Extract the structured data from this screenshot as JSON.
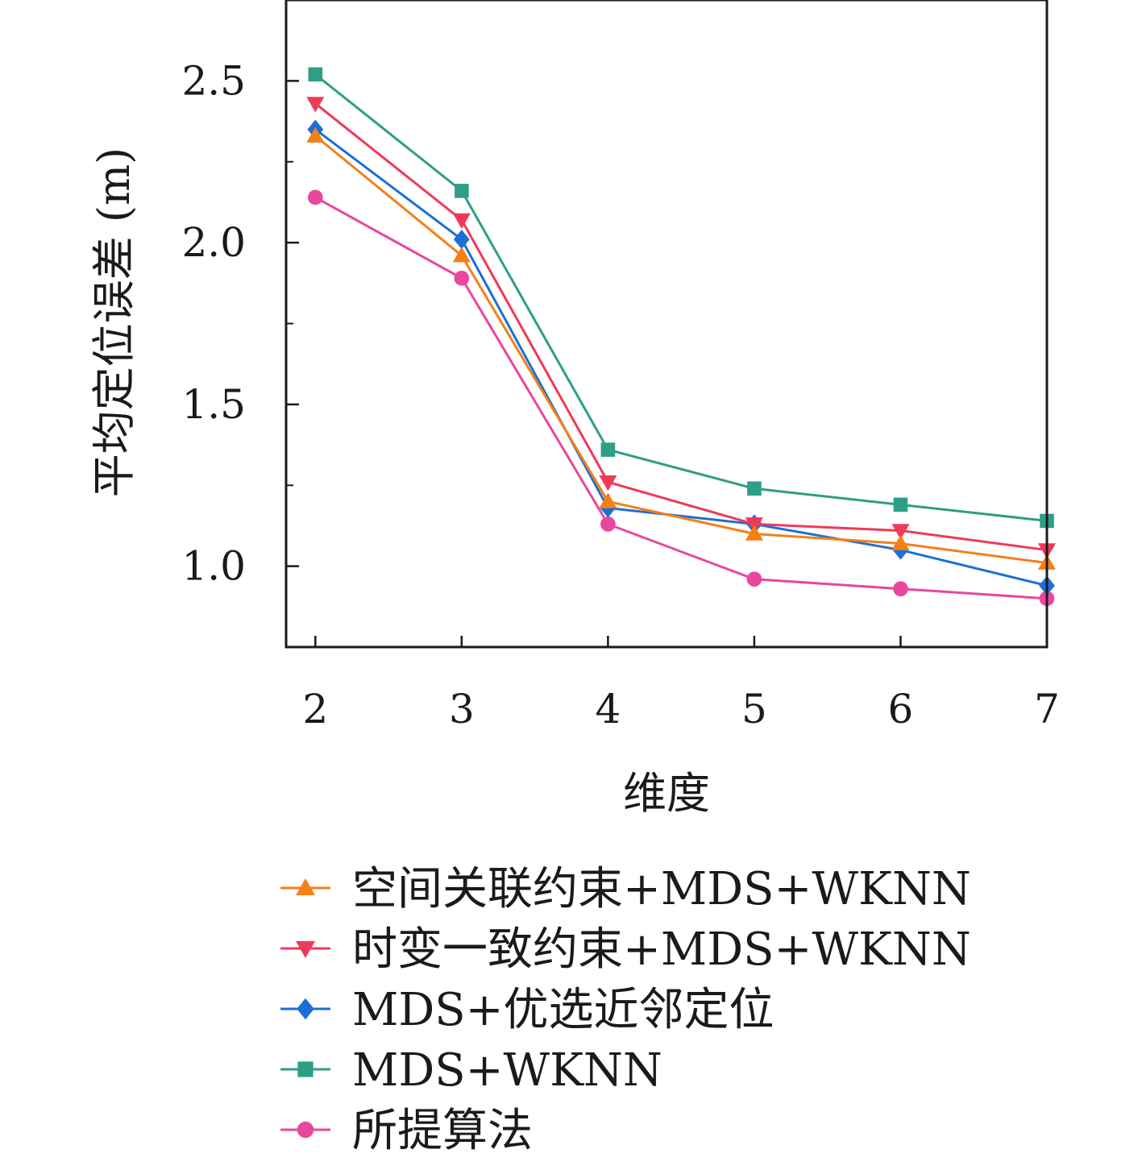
{
  "chart_data": {
    "type": "line",
    "xlabel": "维度",
    "ylabel": "平均定位误差 (m)",
    "x": [
      2,
      3,
      4,
      5,
      6,
      7
    ],
    "xlim": [
      1.8,
      7.0
    ],
    "ylim": [
      0.75,
      2.75
    ],
    "y_ticks_major": [
      1.0,
      1.5,
      2.0,
      2.5
    ],
    "y_ticks_minor": [
      1.25,
      1.75,
      2.25
    ],
    "x_tick_labels": [
      "2",
      "3",
      "4",
      "5",
      "6",
      "7"
    ],
    "y_tick_labels": [
      "1.0",
      "1.5",
      "2.0",
      "2.5"
    ],
    "grid": false,
    "legend_position": "below",
    "series": [
      {
        "name": "空间关联约束+MDS+WKNN",
        "marker": "triangle-up",
        "color": "#f57f17",
        "values": [
          2.33,
          1.96,
          1.2,
          1.1,
          1.07,
          1.01
        ]
      },
      {
        "name": "时变一致约束+MDS+WKNN",
        "marker": "triangle-down",
        "color": "#ee3a57",
        "values": [
          2.43,
          2.07,
          1.26,
          1.13,
          1.11,
          1.05
        ]
      },
      {
        "name": "MDS+优选近邻定位",
        "marker": "diamond",
        "color": "#1c6fd6",
        "values": [
          2.35,
          2.01,
          1.18,
          1.13,
          1.05,
          0.94
        ]
      },
      {
        "name": "MDS+WKNN",
        "marker": "square",
        "color": "#2e9e86",
        "values": [
          2.52,
          2.16,
          1.36,
          1.24,
          1.19,
          1.14
        ]
      },
      {
        "name": "所提算法",
        "marker": "circle",
        "color": "#e8479c",
        "values": [
          2.14,
          1.89,
          1.13,
          0.96,
          0.93,
          0.9
        ]
      }
    ]
  }
}
